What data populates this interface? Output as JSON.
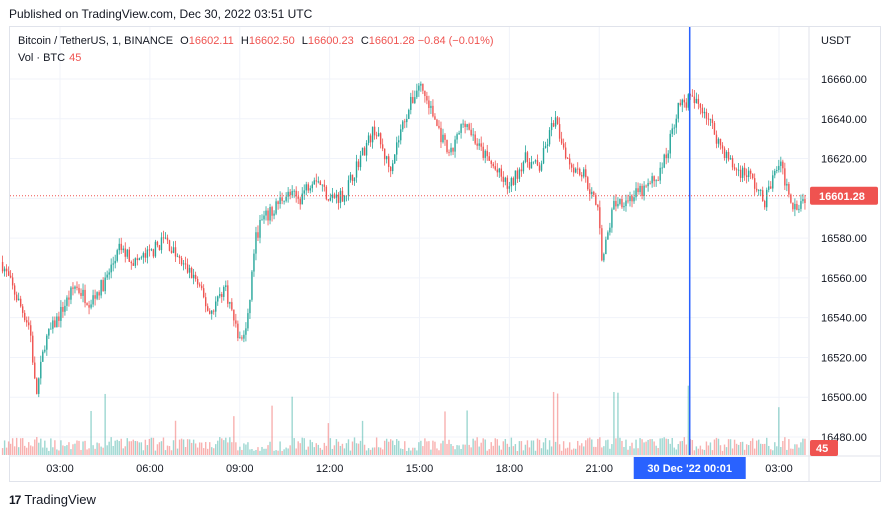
{
  "header": {
    "published": "Published on TradingView.com, Dec 30, 2022 03:51 UTC"
  },
  "legend": {
    "symbol": "Bitcoin / TetherUS, 1, BINANCE",
    "open_label": "O",
    "open": "16602.11",
    "high_label": "H",
    "high": "16602.50",
    "low_label": "L",
    "low": "16600.23",
    "close_label": "C",
    "close": "16601.28",
    "change": "−0.84 (−0.01%)",
    "volume_label": "Vol · BTC",
    "volume_value": "45"
  },
  "currency": "USDT",
  "footer": {
    "brand": "TradingView"
  },
  "colors": {
    "up": "#26a69a",
    "down": "#ef5350",
    "crosshair": "#2962ff",
    "grid": "#f0f3fa",
    "price_line": "#ef5350"
  },
  "chart_data": {
    "type": "candlestick",
    "interval": "1 minute",
    "y_axis_ticks": [
      16660,
      16640,
      16620,
      16600,
      16580,
      16560,
      16540,
      16520,
      16500,
      16480
    ],
    "y_axis_labels": [
      "16660.00",
      "16640.00",
      "16620.00",
      "16600.00",
      "16580.00",
      "16560.00",
      "16540.00",
      "16520.00",
      "16500.00",
      "16480.00"
    ],
    "ylim": [
      16470,
      16670
    ],
    "x_axis_labels": [
      "03:00",
      "06:00",
      "09:00",
      "12:00",
      "15:00",
      "18:00",
      "21:00",
      "00:01",
      "03:00"
    ],
    "x_tick_hours": [
      3,
      6,
      9,
      12,
      15,
      18,
      21,
      24,
      27
    ],
    "x_range_hours": [
      1.05,
      27.9
    ],
    "crosshair": {
      "hour": 24.02,
      "label_date": "30 Dec '22",
      "label_time": "00:01"
    },
    "last_price": {
      "value": 16601.28,
      "label": "16601.28"
    },
    "last_volume": {
      "value": 45,
      "label": "45"
    },
    "price_path": [
      [
        1.05,
        16568
      ],
      [
        1.5,
        16552
      ],
      [
        2.0,
        16535
      ],
      [
        2.2,
        16500
      ],
      [
        2.5,
        16528
      ],
      [
        3.0,
        16542
      ],
      [
        3.5,
        16556
      ],
      [
        4.0,
        16548
      ],
      [
        4.5,
        16558
      ],
      [
        5.0,
        16575
      ],
      [
        5.5,
        16568
      ],
      [
        6.0,
        16572
      ],
      [
        6.5,
        16580
      ],
      [
        7.0,
        16568
      ],
      [
        7.5,
        16560
      ],
      [
        8.0,
        16542
      ],
      [
        8.5,
        16556
      ],
      [
        9.0,
        16528
      ],
      [
        9.25,
        16535
      ],
      [
        9.5,
        16578
      ],
      [
        9.7,
        16588
      ],
      [
        10.0,
        16592
      ],
      [
        10.5,
        16602
      ],
      [
        11.0,
        16600
      ],
      [
        11.5,
        16612
      ],
      [
        12.0,
        16600
      ],
      [
        12.5,
        16602
      ],
      [
        13.0,
        16620
      ],
      [
        13.5,
        16635
      ],
      [
        14.0,
        16615
      ],
      [
        14.5,
        16640
      ],
      [
        15.0,
        16658
      ],
      [
        15.5,
        16640
      ],
      [
        16.0,
        16620
      ],
      [
        16.5,
        16640
      ],
      [
        17.0,
        16625
      ],
      [
        17.5,
        16615
      ],
      [
        18.0,
        16605
      ],
      [
        18.5,
        16620
      ],
      [
        19.0,
        16615
      ],
      [
        19.5,
        16640
      ],
      [
        20.0,
        16618
      ],
      [
        20.5,
        16612
      ],
      [
        21.0,
        16592
      ],
      [
        21.1,
        16568
      ],
      [
        21.5,
        16598
      ],
      [
        22.0,
        16600
      ],
      [
        22.5,
        16604
      ],
      [
        23.0,
        16612
      ],
      [
        23.3,
        16625
      ],
      [
        23.6,
        16645
      ],
      [
        24.0,
        16650
      ],
      [
        24.5,
        16645
      ],
      [
        25.0,
        16628
      ],
      [
        25.5,
        16615
      ],
      [
        26.0,
        16612
      ],
      [
        26.5,
        16598
      ],
      [
        27.0,
        16618
      ],
      [
        27.5,
        16596
      ],
      [
        27.9,
        16601
      ]
    ]
  }
}
